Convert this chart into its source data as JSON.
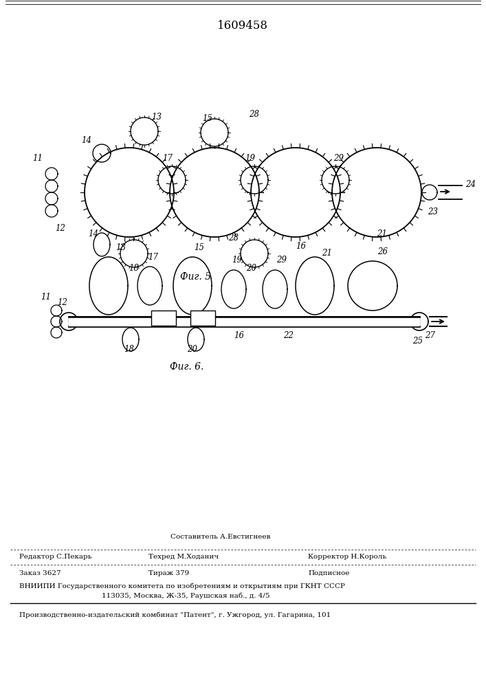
{
  "patent_number": "1609458",
  "fig5_caption": "Фиг. 5",
  "fig6_caption": "Фиг. 6.",
  "footer_compose": "Составитель А.Евстигнеев",
  "footer_line1_left": "Редактор С.Пекарь",
  "footer_line1_mid": "Техред М.Ходанич",
  "footer_line1_right": "Корректор Н.Король",
  "footer_line2_left": "Заказ 3627",
  "footer_line2_mid": "Тираж 379",
  "footer_line2_right": "Подписное",
  "footer_line3": "ВНИИПИ Государственного комитета по изобретениям и открытиям при ГКНТ СССР",
  "footer_line4": "113035, Москва, Ж-35, Раушская наб., д. 4/5",
  "footer_line5": "Производственно-издательский комбинат \"Патент\", г. Ужгород, ул. Гагарина, 101",
  "bg_color": "#ffffff"
}
